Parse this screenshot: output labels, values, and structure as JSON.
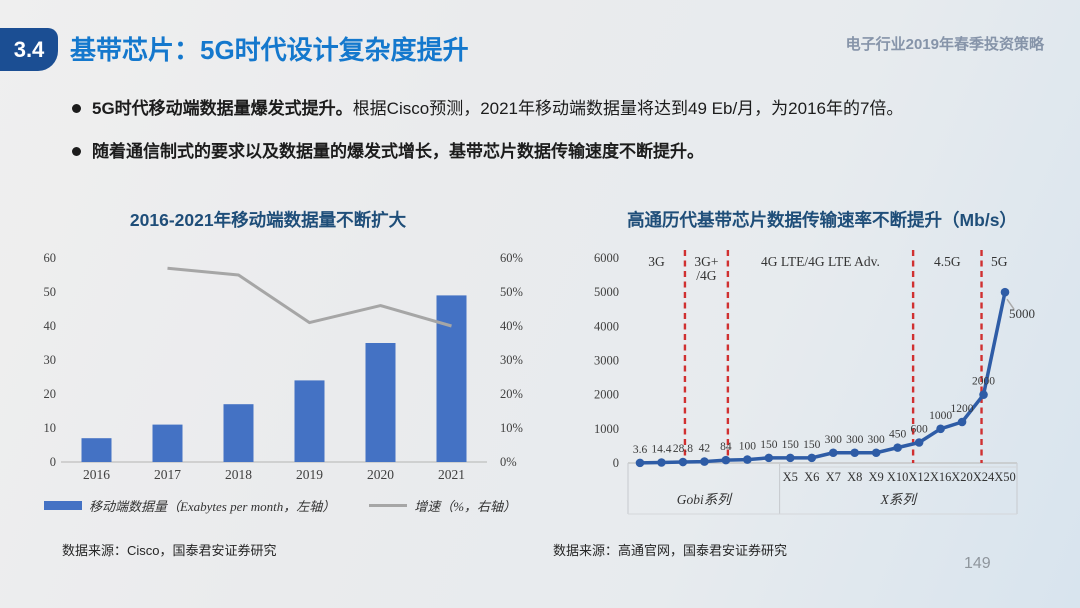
{
  "header": {
    "section_number": "3.4",
    "title": "基带芯片：5G时代设计复杂度提升",
    "deck_title": "电子行业2019年春季投资策略"
  },
  "bullets": [
    {
      "lead": "5G时代移动端数据量爆发式提升。",
      "rest": "根据Cisco预测，2021年移动端数据量将达到49 Eb/月，为2016年的7倍。"
    },
    {
      "lead": "随着通信制式的要求以及数据量的爆发式增长，基带芯片数据传输速度不断提升。",
      "rest": ""
    }
  ],
  "charts": {
    "left": {
      "title": "2016-2021年移动端数据量不断扩大",
      "source": "数据来源：Cisco，国泰君安证券研究"
    },
    "right": {
      "title": "高通历代基带芯片数据传输速率不断提升（Mb/s）",
      "source": "数据来源：高通官网，国泰君安证券研究"
    }
  },
  "footer": {
    "page_number": "149"
  },
  "colors": {
    "accent_title": "#1478cd",
    "badge": "#1b4e93",
    "chart_title": "#1f4e79",
    "bar": "#4472c4",
    "growth_line": "#a6a6a6",
    "speed_line": "#2e5ca6",
    "divider_red": "#d03030",
    "axis_text": "#404040",
    "grid": "#bfbfbf"
  },
  "chart_data": [
    {
      "type": "bar",
      "title": "2016-2021年移动端数据量不断扩大",
      "categories": [
        "2016",
        "2017",
        "2018",
        "2019",
        "2020",
        "2021"
      ],
      "series": [
        {
          "name": "移动端数据量（Exabytes per month，左轴）",
          "type": "bar",
          "axis": "left",
          "color": "#4472c4",
          "values": [
            7,
            11,
            17,
            24,
            35,
            49
          ]
        },
        {
          "name": "增速（%，右轴）",
          "type": "line",
          "axis": "right",
          "color": "#a6a6a6",
          "values": [
            null,
            57,
            55,
            41,
            46,
            40
          ]
        }
      ],
      "left_axis": {
        "min": 0,
        "max": 60,
        "step": 10,
        "labels": [
          "0",
          "10",
          "20",
          "30",
          "40",
          "50",
          "60"
        ]
      },
      "right_axis": {
        "min": 0,
        "max": 60,
        "step": 10,
        "labels": [
          "0%",
          "10%",
          "20%",
          "30%",
          "40%",
          "50%",
          "60%"
        ]
      },
      "grid": false,
      "legend_position": "bottom"
    },
    {
      "type": "line",
      "title": "高通历代基带芯片数据传输速率不断提升（Mb/s）",
      "ylabel": "Mb/s",
      "y_axis": {
        "min": 0,
        "max": 6000,
        "step": 1000,
        "labels": [
          "0",
          "1000",
          "2000",
          "3000",
          "4000",
          "5000",
          "6000"
        ]
      },
      "line_color": "#2e5ca6",
      "divider_color": "#d03030",
      "points": [
        {
          "model": "",
          "label": "3.6",
          "value": 3.6
        },
        {
          "model": "",
          "label": "14.4",
          "value": 14.4
        },
        {
          "model": "",
          "label": "28.8",
          "value": 28.8
        },
        {
          "model": "",
          "label": "42",
          "value": 42
        },
        {
          "model": "",
          "label": "84",
          "value": 84
        },
        {
          "model": "",
          "label": "100",
          "value": 100
        },
        {
          "model": "",
          "label": "150",
          "value": 150
        },
        {
          "model": "X5",
          "label": "150",
          "value": 150
        },
        {
          "model": "X6",
          "label": "150",
          "value": 150
        },
        {
          "model": "X7",
          "label": "300",
          "value": 300
        },
        {
          "model": "X8",
          "label": "300",
          "value": 300
        },
        {
          "model": "X9",
          "label": "300",
          "value": 300
        },
        {
          "model": "X10",
          "label": "450",
          "value": 450
        },
        {
          "model": "X12",
          "label": "600",
          "value": 600
        },
        {
          "model": "X16",
          "label": "1000",
          "value": 1000
        },
        {
          "model": "X20",
          "label": "1200",
          "value": 1200
        },
        {
          "model": "X24",
          "label": "2000",
          "value": 2000
        },
        {
          "model": "X50",
          "label": "5000",
          "value": 5000
        }
      ],
      "generations": [
        {
          "lines": [
            "3G"
          ]
        },
        {
          "lines": [
            "3G+",
            "/4G"
          ]
        },
        {
          "lines": [
            "4G LTE/4G LTE Adv."
          ]
        },
        {
          "lines": [
            "4.5G"
          ]
        },
        {
          "lines": [
            "5G"
          ]
        }
      ],
      "boundaries": [
        {
          "at_point": 2,
          "offset": 2
        },
        {
          "at_point": 4,
          "offset": 2
        },
        {
          "at_point": 13,
          "offset": -6
        },
        {
          "at_point": 16,
          "offset": -2
        }
      ],
      "groups": [
        {
          "label": "Gobi系列",
          "from": 0,
          "to": 6
        },
        {
          "label": "X系列",
          "from": 7,
          "to": 17
        }
      ]
    }
  ]
}
